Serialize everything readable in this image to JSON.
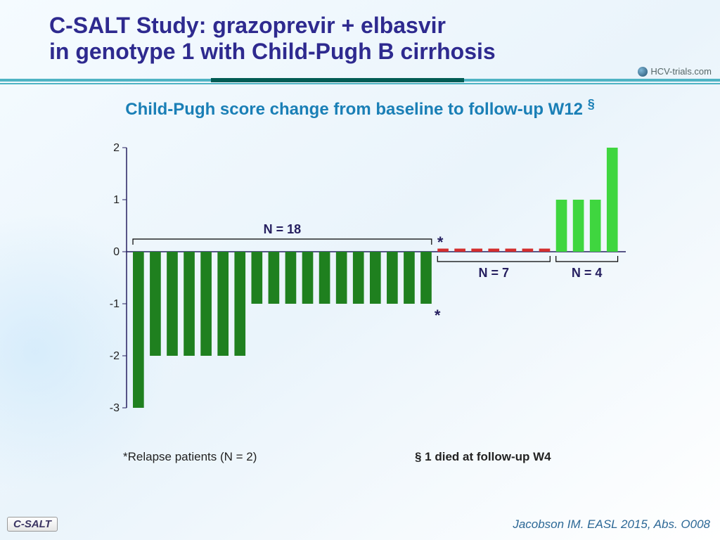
{
  "title_line1": "C-SALT Study: grazoprevir + elbasvir",
  "title_line2": "in genotype 1 with Child-Pugh B cirrhosis",
  "title_fontsize": 32,
  "subtitle": "Child-Pugh score change from baseline to follow-up W12",
  "subtitle_symbol": "§",
  "subtitle_fontsize": 24,
  "logo_text": "HCV-trials.com",
  "logo_fontsize": 13,
  "chart": {
    "type": "bar",
    "y_min": -3,
    "y_max": 2,
    "y_tick_step": 1,
    "y_ticks": [
      "-3",
      "-2",
      "-1",
      "0",
      "1",
      "2"
    ],
    "bar_width": 0.65,
    "axis_color": "#262060",
    "grid_color": "#ffffff",
    "bg_color": "transparent",
    "group_neg": {
      "color": "#1f801f",
      "values": [
        -3,
        -2,
        -2,
        -2,
        -2,
        -2,
        -2,
        -1,
        -1,
        -1,
        -1,
        -1,
        -1,
        -1,
        -1,
        -1,
        -1,
        -1
      ],
      "label": "N = 18"
    },
    "group_zero": {
      "color": "#d32f2f",
      "values": [
        0.06,
        0.06,
        0.06,
        0.06,
        0.06,
        0.06,
        0.06
      ],
      "label": "N = 7"
    },
    "group_pos": {
      "color": "#3fd63f",
      "values": [
        1,
        1,
        1,
        2
      ],
      "label": "N = 4"
    },
    "star_indices_in_neg_group": [
      17,
      18
    ],
    "star_symbol": "*"
  },
  "footnote_left": "*Relapse patients (N = 2)",
  "footnote_right": "§  1 died at follow-up W4",
  "badge": "C-SALT",
  "citation": "Jacobson IM. EASL 2015, Abs. O008"
}
